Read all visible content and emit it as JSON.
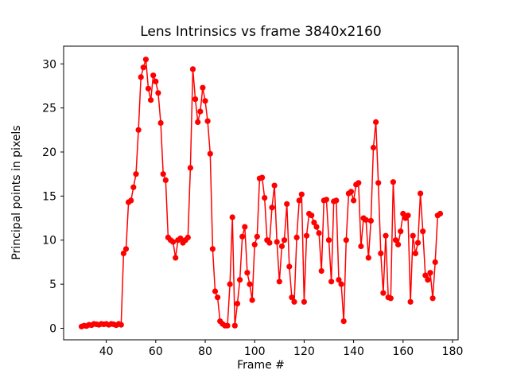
{
  "figure": {
    "background": "#ffffff"
  },
  "chart_data": {
    "type": "line",
    "title": "Lens Intrinsics vs frame 3840x2160",
    "xlabel": "Frame #",
    "ylabel": "Principal points in pixels",
    "line_color": "#ff0000",
    "marker": "o",
    "marker_color": "#ff0000",
    "xlim": [
      22.75,
      182.25
    ],
    "ylim": [
      -1.31,
      32.01
    ],
    "xticks": [
      40,
      60,
      80,
      100,
      120,
      140,
      160,
      180
    ],
    "yticks": [
      0,
      5,
      10,
      15,
      20,
      25,
      30
    ],
    "grid": false,
    "legend": null,
    "x": [
      30,
      31,
      32,
      33,
      34,
      35,
      36,
      37,
      38,
      39,
      40,
      41,
      42,
      43,
      44,
      45,
      46,
      47,
      48,
      49,
      50,
      51,
      52,
      53,
      54,
      55,
      56,
      57,
      58,
      59,
      60,
      61,
      62,
      63,
      64,
      65,
      66,
      67,
      68,
      69,
      70,
      71,
      72,
      73,
      74,
      75,
      76,
      77,
      78,
      79,
      80,
      81,
      82,
      83,
      84,
      85,
      86,
      87,
      88,
      89,
      90,
      91,
      92,
      93,
      94,
      95,
      96,
      97,
      98,
      99,
      100,
      101,
      102,
      103,
      104,
      105,
      106,
      107,
      108,
      109,
      110,
      111,
      112,
      113,
      114,
      115,
      116,
      117,
      118,
      119,
      120,
      121,
      122,
      123,
      124,
      125,
      126,
      127,
      128,
      129,
      130,
      131,
      132,
      133,
      134,
      135,
      136,
      137,
      138,
      139,
      140,
      141,
      142,
      143,
      144,
      145,
      146,
      147,
      148,
      149,
      150,
      151,
      152,
      153,
      154,
      155,
      156,
      157,
      158,
      159,
      160,
      161,
      162,
      163,
      164,
      165,
      166,
      167,
      168,
      169,
      170,
      171,
      172,
      173,
      174,
      175
    ],
    "y": [
      0.2,
      0.3,
      0.25,
      0.4,
      0.35,
      0.5,
      0.45,
      0.4,
      0.5,
      0.45,
      0.5,
      0.4,
      0.5,
      0.45,
      0.35,
      0.5,
      0.4,
      8.5,
      9.0,
      14.3,
      14.5,
      16.0,
      17.5,
      22.5,
      28.5,
      29.6,
      30.5,
      27.2,
      25.9,
      28.7,
      28.0,
      26.7,
      23.3,
      17.5,
      16.8,
      10.3,
      10.0,
      9.8,
      8.0,
      10.0,
      10.2,
      9.7,
      10.0,
      10.3,
      18.2,
      29.4,
      26.0,
      23.4,
      24.6,
      27.3,
      25.8,
      23.5,
      19.8,
      9.0,
      4.2,
      3.5,
      0.8,
      0.5,
      0.3,
      0.3,
      5.0,
      12.6,
      0.3,
      2.8,
      5.5,
      10.4,
      11.5,
      6.3,
      5.0,
      3.2,
      9.5,
      10.4,
      17.0,
      17.1,
      14.8,
      10.0,
      9.7,
      13.7,
      16.2,
      9.8,
      5.3,
      9.3,
      10.0,
      14.1,
      7.0,
      3.5,
      3.0,
      10.3,
      14.5,
      15.2,
      3.0,
      10.5,
      13.0,
      12.8,
      12.0,
      11.5,
      10.8,
      6.5,
      14.5,
      14.6,
      10.0,
      5.3,
      14.4,
      14.5,
      5.5,
      5.0,
      0.8,
      10.0,
      15.3,
      15.5,
      14.5,
      16.3,
      16.5,
      9.3,
      12.5,
      12.3,
      8.0,
      12.2,
      20.5,
      23.4,
      16.5,
      8.5,
      4.0,
      10.5,
      3.5,
      3.4,
      16.6,
      10.0,
      9.5,
      11.0,
      13.0,
      12.5,
      12.8,
      3.0,
      10.5,
      8.5,
      9.7,
      15.3,
      11.0,
      6.0,
      5.5,
      6.3,
      3.4,
      7.5,
      12.8,
      13.0
    ]
  }
}
